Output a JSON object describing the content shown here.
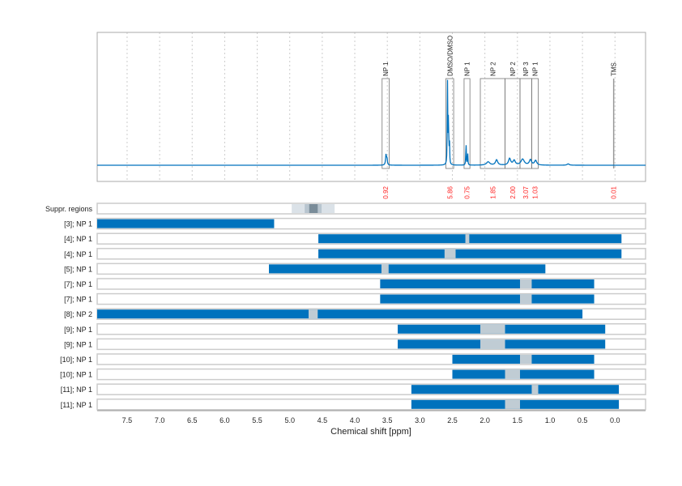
{
  "chart_data": {
    "type": "nmr-spectrum-with-region-bars",
    "xlabel": "Chemical shift [ppm]",
    "xlim": [
      7.96,
      -0.47
    ],
    "xticks": [
      7.5,
      7.0,
      6.5,
      6.0,
      5.5,
      5.0,
      4.5,
      4.0,
      3.5,
      3.0,
      2.5,
      2.0,
      1.5,
      1.0,
      0.5,
      0.0
    ],
    "grid": "vertical dashed",
    "colors": {
      "spectrum": "#0072bd",
      "bar": "#0072bd",
      "gap": "#c0ccd4",
      "integral": "#ff2020",
      "label_box": "#888888"
    },
    "spectrum_peaks": [
      {
        "ppm": 3.52,
        "height": 0.08,
        "width": 0.008
      },
      {
        "ppm": 3.505,
        "height": 0.05,
        "width": 0.006
      },
      {
        "ppm": 2.575,
        "height": 0.62,
        "width": 0.004
      },
      {
        "ppm": 2.56,
        "height": 0.4,
        "width": 0.004
      },
      {
        "ppm": 2.545,
        "height": 0.18,
        "width": 0.004
      },
      {
        "ppm": 2.29,
        "height": 0.18,
        "width": 0.004
      },
      {
        "ppm": 2.265,
        "height": 0.1,
        "width": 0.004
      },
      {
        "ppm": 1.95,
        "height": 0.025,
        "width": 0.03
      },
      {
        "ppm": 1.82,
        "height": 0.04,
        "width": 0.02
      },
      {
        "ppm": 1.62,
        "height": 0.05,
        "width": 0.02
      },
      {
        "ppm": 1.55,
        "height": 0.035,
        "width": 0.02
      },
      {
        "ppm": 1.42,
        "height": 0.045,
        "width": 0.03
      },
      {
        "ppm": 1.3,
        "height": 0.04,
        "width": 0.02
      },
      {
        "ppm": 1.22,
        "height": 0.035,
        "width": 0.02
      },
      {
        "ppm": 0.72,
        "height": 0.01,
        "width": 0.02
      }
    ],
    "assignments": [
      {
        "label": "NP 1",
        "from": 3.58,
        "to": 3.47,
        "integral": "0.92"
      },
      {
        "label": "DMSO/DMSO",
        "from": 2.6,
        "to": 2.48,
        "integral": "5.86"
      },
      {
        "label": "NP 1",
        "from": 2.32,
        "to": 2.23,
        "integral": "0.75"
      },
      {
        "label": "NP 2",
        "from": 2.07,
        "to": 1.69,
        "integral": "1.85"
      },
      {
        "label": "NP 2",
        "from": 1.69,
        "to": 1.46,
        "integral": "2.00"
      },
      {
        "label": "NP 3",
        "from": 1.46,
        "to": 1.28,
        "integral": "3.07"
      },
      {
        "label": "NP 1",
        "from": 1.28,
        "to": 1.18,
        "integral": "1.03"
      },
      {
        "label": "TMS",
        "from": 0.02,
        "to": 0.02,
        "integral": "0.01"
      }
    ],
    "suppressed": {
      "label": "Suppr. regions",
      "bands": [
        {
          "from": 4.97,
          "to": 4.31,
          "color": "#dbe2e8"
        },
        {
          "from": 4.77,
          "to": 4.51,
          "color": "#b8c5cf"
        },
        {
          "from": 4.7,
          "to": 4.57,
          "color": "#7a8c99"
        }
      ]
    },
    "rows": [
      {
        "label": "[3]; NP 1",
        "from": 7.96,
        "to": 5.24,
        "gaps": []
      },
      {
        "label": "[4]; NP 1",
        "from": 4.56,
        "to": -0.1,
        "gaps": [
          [
            2.3,
            2.24
          ]
        ]
      },
      {
        "label": "[4]; NP 1",
        "from": 4.56,
        "to": -0.1,
        "gaps": [
          [
            2.62,
            2.45
          ]
        ]
      },
      {
        "label": "[5]; NP 1",
        "from": 5.32,
        "to": 1.07,
        "gaps": [
          [
            3.59,
            3.48
          ]
        ]
      },
      {
        "label": "[7]; NP 1",
        "from": 3.61,
        "to": 0.32,
        "gaps": [
          [
            1.46,
            1.28
          ]
        ]
      },
      {
        "label": "[7]; NP 1",
        "from": 3.61,
        "to": 0.32,
        "gaps": [
          [
            1.46,
            1.28
          ]
        ]
      },
      {
        "label": "[8]; NP 2",
        "from": 7.96,
        "to": 0.5,
        "gaps": [
          [
            4.71,
            4.57
          ]
        ]
      },
      {
        "label": "[9]; NP 1",
        "from": 3.34,
        "to": 0.15,
        "gaps": [
          [
            2.07,
            1.69
          ]
        ]
      },
      {
        "label": "[9]; NP 1",
        "from": 3.34,
        "to": 0.15,
        "gaps": [
          [
            2.07,
            1.69
          ]
        ]
      },
      {
        "label": "[10]; NP 1",
        "from": 2.5,
        "to": 0.32,
        "gaps": [
          [
            1.46,
            1.28
          ]
        ]
      },
      {
        "label": "[10]; NP 1",
        "from": 2.5,
        "to": 0.32,
        "gaps": [
          [
            1.69,
            1.46
          ]
        ]
      },
      {
        "label": "[11]; NP 1",
        "from": 3.13,
        "to": -0.06,
        "gaps": [
          [
            1.28,
            1.18
          ]
        ]
      },
      {
        "label": "[11]; NP 1",
        "from": 3.13,
        "to": -0.06,
        "gaps": [
          [
            1.69,
            1.46
          ]
        ]
      }
    ]
  }
}
